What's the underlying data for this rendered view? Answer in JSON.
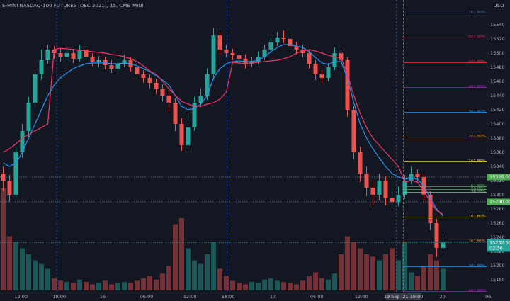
{
  "chart_data": {
    "type": "candlestick",
    "title": "E-MINI NASDAQ-100 FUTURES (DEC 2021), 15, CME_MINI",
    "currency": "USD",
    "up_color": "#26a69a",
    "down_color": "#ef5350",
    "x": [
      0.5,
      1.5,
      2.5,
      3.5,
      4.5,
      5.5,
      6.5,
      7.5,
      8.5,
      9.5,
      10.5,
      11.5,
      12.5,
      13.5,
      14.5,
      15.5,
      16.5,
      17.5,
      18.5,
      19.5,
      20.5,
      21.5,
      22.5,
      23.5,
      24.5,
      25.5,
      26.5,
      27.5,
      28.5,
      29.5,
      30.5,
      31.5,
      32.5,
      33.5,
      34.5,
      35.5,
      36.5,
      37.5,
      38.5,
      39.5,
      40.5,
      41.5,
      42.5,
      43.5,
      44.5,
      45.5,
      46.5,
      47.5,
      48.5,
      49.5,
      50.5,
      51.5,
      52.5,
      53.5,
      54.5,
      55.5,
      56.5,
      57.5,
      58.5,
      59.5,
      60.5,
      61.5,
      62.5,
      63.5,
      64.5,
      65.5,
      66.5,
      67.5,
      68.5,
      69.5
    ],
    "open": [
      15330,
      15320,
      15300,
      15360,
      15390,
      15430,
      15470,
      15490,
      15505,
      15500,
      15495,
      15500,
      15492,
      15505,
      15495,
      15488,
      15490,
      15483,
      15478,
      15485,
      15490,
      15480,
      15470,
      15465,
      15458,
      15450,
      15440,
      15430,
      15400,
      15370,
      15395,
      15430,
      15440,
      15470,
      15525,
      15505,
      15500,
      15497,
      15492,
      15485,
      15488,
      15495,
      15505,
      15515,
      15522,
      15520,
      15510,
      15505,
      15500,
      15485,
      15470,
      15465,
      15480,
      15500,
      15490,
      15420,
      15360,
      15330,
      15310,
      15300,
      15320,
      15295,
      15290,
      15300,
      15320,
      15330,
      15325,
      15300,
      15260,
      15225
    ],
    "high": [
      15340,
      15328,
      15368,
      15400,
      15438,
      15478,
      15505,
      15512,
      15510,
      15506,
      15508,
      15506,
      15512,
      15510,
      15500,
      15496,
      15495,
      15490,
      15492,
      15498,
      15495,
      15486,
      15476,
      15470,
      15464,
      15456,
      15448,
      15436,
      15408,
      15402,
      15438,
      15450,
      15478,
      15535,
      15530,
      15512,
      15506,
      15503,
      15498,
      15495,
      15502,
      15512,
      15522,
      15530,
      15532,
      15525,
      15516,
      15512,
      15505,
      15490,
      15476,
      15486,
      15508,
      15505,
      15494,
      15425,
      15368,
      15340,
      15320,
      15330,
      15326,
      15305,
      15312,
      15328,
      15340,
      15336,
      15330,
      15305,
      15266,
      15245
    ],
    "low": [
      15305,
      15290,
      15295,
      15352,
      15382,
      15422,
      15462,
      15485,
      15492,
      15488,
      15490,
      15486,
      15488,
      15490,
      15482,
      15480,
      15477,
      15472,
      15474,
      15480,
      15474,
      15463,
      15458,
      15450,
      15442,
      15432,
      15418,
      15390,
      15362,
      15364,
      15390,
      15424,
      15434,
      15462,
      15498,
      15494,
      15490,
      15486,
      15478,
      15480,
      15484,
      15490,
      15500,
      15510,
      15514,
      15504,
      15498,
      15494,
      15478,
      15462,
      15458,
      15460,
      15476,
      15482,
      15410,
      15350,
      15318,
      15298,
      15285,
      15292,
      15285,
      15280,
      15284,
      15294,
      15315,
      15316,
      15292,
      15250,
      15212,
      15218
    ],
    "close": [
      15320,
      15300,
      15360,
      15390,
      15430,
      15470,
      15490,
      15505,
      15500,
      15495,
      15500,
      15492,
      15505,
      15495,
      15488,
      15490,
      15483,
      15478,
      15485,
      15490,
      15480,
      15470,
      15465,
      15458,
      15450,
      15440,
      15430,
      15400,
      15370,
      15395,
      15430,
      15440,
      15470,
      15525,
      15505,
      15500,
      15497,
      15492,
      15485,
      15488,
      15495,
      15505,
      15515,
      15522,
      15520,
      15510,
      15505,
      15500,
      15485,
      15470,
      15465,
      15480,
      15500,
      15490,
      15420,
      15360,
      15330,
      15310,
      15300,
      15320,
      15295,
      15290,
      15300,
      15320,
      15330,
      15325,
      15300,
      15260,
      15225,
      15232.5
    ],
    "volume": [
      85,
      45,
      40,
      35,
      30,
      25,
      22,
      18,
      10,
      8,
      7,
      6,
      9,
      7,
      5,
      6,
      8,
      5,
      6,
      7,
      6,
      8,
      10,
      12,
      9,
      14,
      20,
      55,
      60,
      35,
      25,
      22,
      30,
      40,
      18,
      12,
      8,
      6,
      5,
      7,
      6,
      9,
      10,
      8,
      7,
      6,
      5,
      8,
      12,
      15,
      10,
      9,
      14,
      30,
      45,
      40,
      35,
      30,
      28,
      25,
      30,
      35,
      25,
      40,
      15,
      12,
      20,
      30,
      25,
      18
    ],
    "vlim": [
      0,
      100
    ],
    "lines": [
      {
        "color": "#2196f3",
        "values": [
          15345,
          15340,
          15345,
          15360,
          15380,
          15400,
          15420,
          15440,
          15455,
          15465,
          15472,
          15478,
          15482,
          15485,
          15486,
          15486,
          15486,
          15485,
          15485,
          15486,
          15485,
          15482,
          15478,
          15474,
          15468,
          15462,
          15455,
          15440,
          15425,
          15420,
          15422,
          15428,
          15440,
          15465,
          15478,
          15485,
          15488,
          15489,
          15488,
          15488,
          15490,
          15495,
          15502,
          15508,
          15512,
          15512,
          15510,
          15508,
          15502,
          15494,
          15486,
          15484,
          15488,
          15488,
          15465,
          15430,
          15400,
          15380,
          15365,
          15352,
          15340,
          15330,
          15325,
          15322,
          15324,
          15322,
          15312,
          15295,
          15280,
          15270
        ]
      },
      {
        "color": "#f23668",
        "values": [
          15360,
          15365,
          15372,
          15380,
          15385,
          15390,
          15395,
          15400,
          15505,
          15507,
          15506,
          15505,
          15504,
          15503,
          15502,
          15501,
          15500,
          15498,
          15497,
          15495,
          15492,
          15488,
          15482,
          15475,
          15470,
          15460,
          15450,
          15440,
          15432,
          15428,
          15425,
          15425,
          15428,
          15430,
          15435,
          15445,
          15487,
          15486,
          15485,
          15486,
          15487,
          15488,
          15489,
          15490,
          15492,
          15495,
          15500,
          15503,
          15505,
          15503,
          15500,
          15497,
          15495,
          15493,
          15470,
          15440,
          15415,
          15395,
          15380,
          15370,
          15360,
          15350,
          15340,
          15318,
          15320,
          15318,
          15305,
          15290,
          15278,
          15272
        ]
      }
    ],
    "xlim": [
      0,
      80
    ],
    "xticks": [
      {
        "value": 3.3,
        "label": "12:00"
      },
      {
        "value": 9.3,
        "label": "18:00"
      },
      {
        "value": 16.1,
        "label": "16"
      },
      {
        "value": 23,
        "label": "06:00"
      },
      {
        "value": 29.8,
        "label": "12:00"
      },
      {
        "value": 35.8,
        "label": "18:00"
      },
      {
        "value": 42.8,
        "label": "17"
      },
      {
        "value": 49.7,
        "label": "06:00"
      },
      {
        "value": 56.7,
        "label": "12:00"
      },
      {
        "value": 69.4,
        "label": "20"
      },
      {
        "value": 76.7,
        "label": "06:"
      }
    ],
    "ylim": [
      15150,
      15575
    ],
    "yticks": [
      15180,
      15200,
      15220,
      15240,
      15260,
      15280,
      15300,
      15320,
      15340,
      15360,
      15380,
      15400,
      15420,
      15440,
      15460,
      15480,
      15500,
      15520,
      15540
    ],
    "session_breaks": [
      8.9,
      35.6,
      62.2
    ],
    "crosshair": {
      "value": 63.3,
      "label": "19 Sep '21  19:00"
    },
    "fib_levels": [
      {
        "label": "761.80%",
        "value": 15556.6,
        "color": "#5d6f99"
      },
      {
        "label": "661.80%",
        "value": 15521.6,
        "color": "#e91e63"
      },
      {
        "label": "561.80%",
        "value": 15486.6,
        "color": "#f23645"
      },
      {
        "label": "461.80%",
        "value": 15451.6,
        "color": "#9c27b0"
      },
      {
        "label": "361.80%",
        "value": 15416.6,
        "color": "#2196f3"
      },
      {
        "label": "261.80%",
        "value": 15381.6,
        "color": "#f57c00"
      },
      {
        "label": "161.80%",
        "value": 15346.6,
        "color": "#f7c948"
      },
      {
        "label": "61.80%",
        "value": 15311.6,
        "color": "#4caf50"
      },
      {
        "label": "50.00%",
        "value": 15307.5,
        "color": "#4caf50"
      },
      {
        "label": "38.20%",
        "value": 15303.4,
        "color": "#81c784"
      },
      {
        "label": "161.80%",
        "value": 15268.4,
        "color": "#f7c948"
      },
      {
        "label": "261.80%",
        "value": 15233.4,
        "color": "#f57c00"
      },
      {
        "label": "361.80%",
        "value": 15198.4,
        "color": "#2196f3"
      },
      {
        "label": "461.80%",
        "value": 15163.4,
        "color": "#9c27b0"
      }
    ],
    "price_markers": [
      {
        "value": 15325,
        "label": "15325.00",
        "color": "#4caf50"
      },
      {
        "value": 15290,
        "label": "15290.00",
        "color": "#4caf50"
      }
    ],
    "last_price": {
      "value": 15232.5,
      "label": "15232.50",
      "countdown": "02:36",
      "color": "#26a69a"
    }
  }
}
